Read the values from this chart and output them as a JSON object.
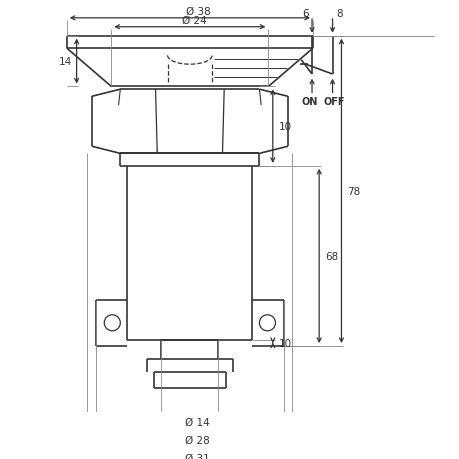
{
  "bg_color": "#ffffff",
  "line_color": "#333333",
  "dim_color": "#333333",
  "ext_color": "#888888",
  "fig_width": 4.6,
  "fig_height": 4.6,
  "dpi": 100,
  "dims": {
    "d38": "Ø 38",
    "d24": "Ø 24",
    "d14": "Ø 14",
    "d28": "Ø 28",
    "d31": "Ø 31",
    "h14": "14",
    "h10a": "10",
    "h68": "68",
    "h78": "78",
    "h10b": "10",
    "h6": "6",
    "h8": "8"
  }
}
